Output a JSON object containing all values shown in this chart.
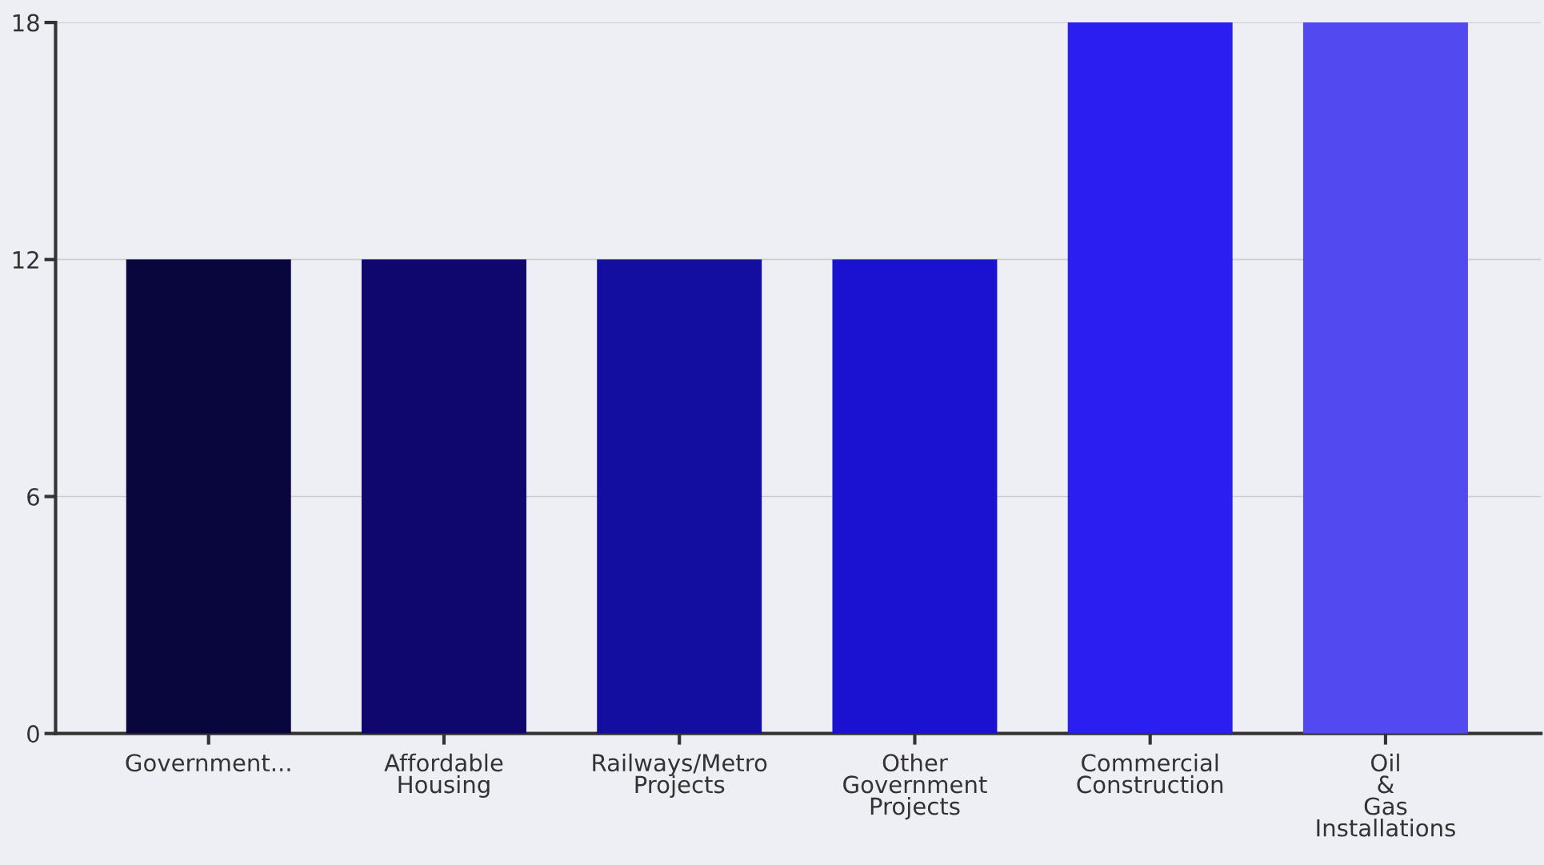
{
  "chart_data": {
    "type": "bar",
    "categories": [
      "Government...",
      "Affordable\nHousing",
      "Railways/Metro\nProjects",
      "Other\nGovernment\nProjects",
      "Commercial\nConstruction",
      "Oil\n&\nGas\nInstallations"
    ],
    "values": [
      12,
      12,
      12,
      12,
      18,
      18
    ],
    "colors": [
      "#08063d",
      "#0f066e",
      "#130ea0",
      "#1a12d0",
      "#2a1ff0",
      "#5249f0"
    ],
    "ylim": [
      0,
      18
    ],
    "yticks": [
      0,
      6,
      12,
      18
    ],
    "grid": "y"
  }
}
